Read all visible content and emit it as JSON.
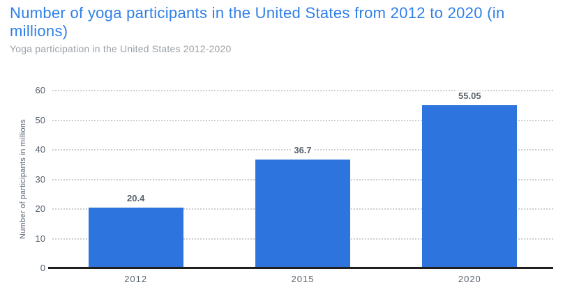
{
  "header": {
    "title": "Number of yoga participants in the United States from 2012 to 2020 (in millions)",
    "subtitle": "Yoga participation in the United States 2012-2020"
  },
  "chart_data": {
    "type": "bar",
    "title": "Number of yoga participants in the United States from 2012 to 2020 (in millions)",
    "subtitle": "Yoga participation in the United States 2012-2020",
    "categories": [
      "2012",
      "2015",
      "2020"
    ],
    "values": [
      20.4,
      36.7,
      55.05
    ],
    "value_labels": [
      "20.4",
      "36.7",
      "55.05"
    ],
    "xlabel": "",
    "ylabel": "Number of participants in millions",
    "ylim": [
      0,
      60
    ],
    "ytick_step": 10,
    "yticks": [
      0,
      10,
      20,
      30,
      40,
      50,
      60
    ],
    "grid": "horizontal-dotted",
    "legend": "none",
    "colors": {
      "bar": "#2e74df",
      "title": "#2f7fe8",
      "subtitle": "#9aa0a6",
      "axis_text": "#59636e",
      "gridline": "#cdcdcd",
      "baseline": "#1f1f1f",
      "background": "#ffffff"
    }
  }
}
